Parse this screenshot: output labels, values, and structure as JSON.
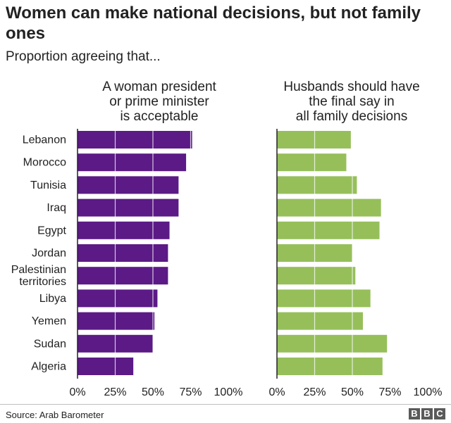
{
  "header": {
    "title": "Women can make national decisions, but not family ones",
    "subtitle": "Proportion agreeing that..."
  },
  "chart_data": [
    {
      "type": "bar",
      "orientation": "horizontal",
      "title": [
        "A woman president",
        "or prime minister",
        "is acceptable"
      ],
      "categories": [
        "Lebanon",
        "Morocco",
        "Tunisia",
        "Iraq",
        "Egypt",
        "Jordan",
        "Palestinian territories",
        "Libya",
        "Yemen",
        "Sudan",
        "Algeria"
      ],
      "category_labels": [
        [
          "Lebanon"
        ],
        [
          "Morocco"
        ],
        [
          "Tunisia"
        ],
        [
          "Iraq"
        ],
        [
          "Egypt"
        ],
        [
          "Jordan"
        ],
        [
          "Palestinian",
          "territories"
        ],
        [
          "Libya"
        ],
        [
          "Yemen"
        ],
        [
          "Sudan"
        ],
        [
          "Algeria"
        ]
      ],
      "values": [
        76,
        72,
        67,
        67,
        61,
        60,
        60,
        53,
        51,
        50,
        37
      ],
      "xlim": [
        0,
        100
      ],
      "ticks": [
        "0%",
        "25%",
        "50%",
        "75%",
        "100%"
      ],
      "tick_values": [
        0,
        25,
        50,
        75,
        100
      ],
      "grid": true,
      "color": "#5b1a86"
    },
    {
      "type": "bar",
      "orientation": "horizontal",
      "title": [
        "Husbands should have",
        "the final say in",
        "all family decisions"
      ],
      "categories": [
        "Lebanon",
        "Morocco",
        "Tunisia",
        "Iraq",
        "Egypt",
        "Jordan",
        "Palestinian territories",
        "Libya",
        "Yemen",
        "Sudan",
        "Algeria"
      ],
      "values": [
        49,
        46,
        53,
        69,
        68,
        50,
        52,
        62,
        57,
        73,
        70
      ],
      "xlim": [
        0,
        100
      ],
      "ticks": [
        "0%",
        "25%",
        "50%",
        "75%",
        "100%"
      ],
      "tick_values": [
        0,
        25,
        50,
        75,
        100
      ],
      "grid": true,
      "color": "#96bf5a"
    }
  ],
  "footer": {
    "source": "Source: Arab Barometer",
    "logo_letters": [
      "B",
      "B",
      "C"
    ]
  }
}
